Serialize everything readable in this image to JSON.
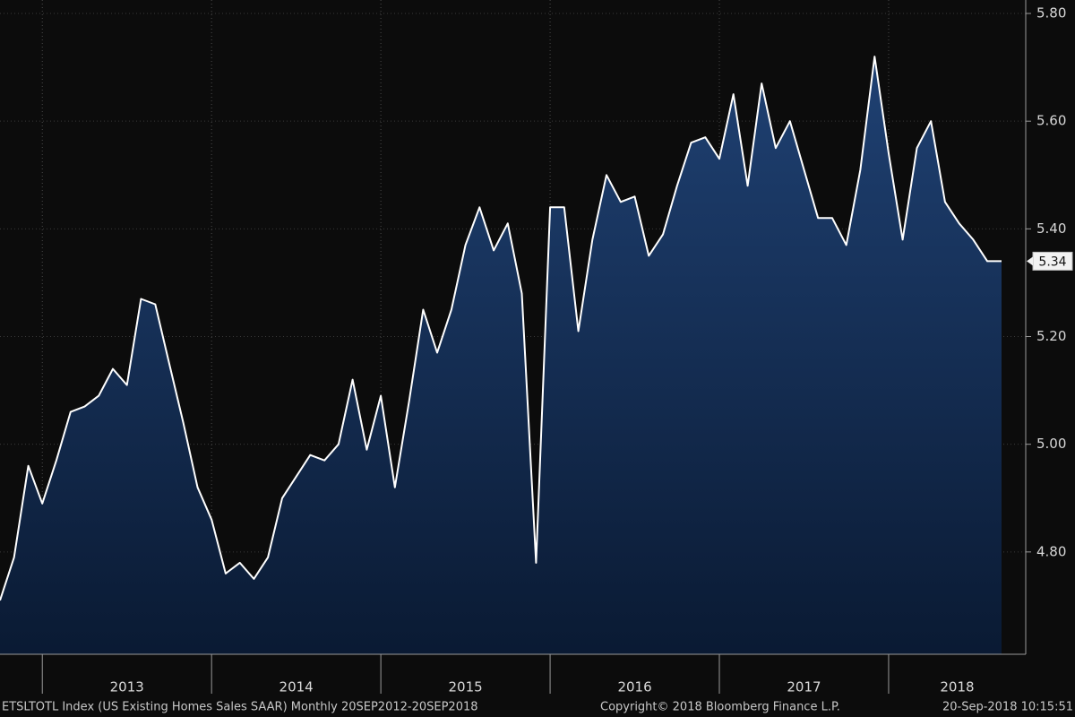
{
  "chart_data": {
    "type": "area",
    "x": [
      2012.75,
      2012.833,
      2012.917,
      2013,
      2013.083,
      2013.167,
      2013.25,
      2013.333,
      2013.417,
      2013.5,
      2013.583,
      2013.667,
      2013.75,
      2013.833,
      2013.917,
      2014,
      2014.083,
      2014.167,
      2014.25,
      2014.333,
      2014.417,
      2014.5,
      2014.583,
      2014.667,
      2014.75,
      2014.833,
      2014.917,
      2015,
      2015.083,
      2015.167,
      2015.25,
      2015.333,
      2015.417,
      2015.5,
      2015.583,
      2015.667,
      2015.75,
      2015.833,
      2015.917,
      2016,
      2016.083,
      2016.167,
      2016.25,
      2016.333,
      2016.417,
      2016.5,
      2016.583,
      2016.667,
      2016.75,
      2016.833,
      2016.917,
      2017,
      2017.083,
      2017.167,
      2017.25,
      2017.333,
      2017.417,
      2017.5,
      2017.583,
      2017.667,
      2017.75,
      2017.833,
      2017.917,
      2018,
      2018.083,
      2018.167,
      2018.25,
      2018.333,
      2018.417,
      2018.5,
      2018.583,
      2018.667
    ],
    "series": [
      {
        "name": "ETSLTOTL Index",
        "color": "#ffffff",
        "fill": "#1d3c6a",
        "values": [
          4.71,
          4.79,
          4.96,
          4.89,
          4.97,
          5.06,
          5.07,
          5.09,
          5.14,
          5.11,
          5.27,
          5.26,
          5.15,
          5.04,
          4.92,
          4.86,
          4.76,
          4.78,
          4.75,
          4.79,
          4.9,
          4.94,
          4.98,
          4.97,
          5.0,
          5.12,
          4.99,
          5.09,
          4.92,
          5.08,
          5.25,
          5.17,
          5.25,
          5.37,
          5.44,
          5.36,
          5.41,
          5.28,
          4.78,
          5.44,
          5.44,
          5.21,
          5.38,
          5.5,
          5.45,
          5.46,
          5.35,
          5.39,
          5.48,
          5.56,
          5.57,
          5.53,
          5.65,
          5.48,
          5.67,
          5.55,
          5.6,
          5.51,
          5.42,
          5.42,
          5.37,
          5.51,
          5.72,
          5.54,
          5.38,
          5.55,
          5.6,
          5.45,
          5.41,
          5.38,
          5.34,
          5.34
        ]
      }
    ],
    "xlim": [
      2012.75,
      2018.81
    ],
    "xticks": [
      2013,
      2014,
      2015,
      2016,
      2017,
      2018
    ],
    "ylim": [
      4.61,
      5.825
    ],
    "yticks": [
      {
        "value": 4.8,
        "label": "4.80"
      },
      {
        "value": 5.0,
        "label": "5.00"
      },
      {
        "value": 5.2,
        "label": "5.20"
      },
      {
        "value": 5.4,
        "label": "5.40"
      },
      {
        "value": 5.6,
        "label": "5.60"
      },
      {
        "value": 5.8,
        "label": "5.80"
      }
    ],
    "last_value": {
      "value": 5.34,
      "label": "5.34"
    },
    "grid": true,
    "footer": [
      "ETSLTOTL Index (US Existing Homes Sales SAAR) Monthly 20SEP2012-20SEP2018",
      "Copyright© 2018 Bloomberg Finance L.P.",
      "20-Sep-2018 10:15:51"
    ]
  }
}
